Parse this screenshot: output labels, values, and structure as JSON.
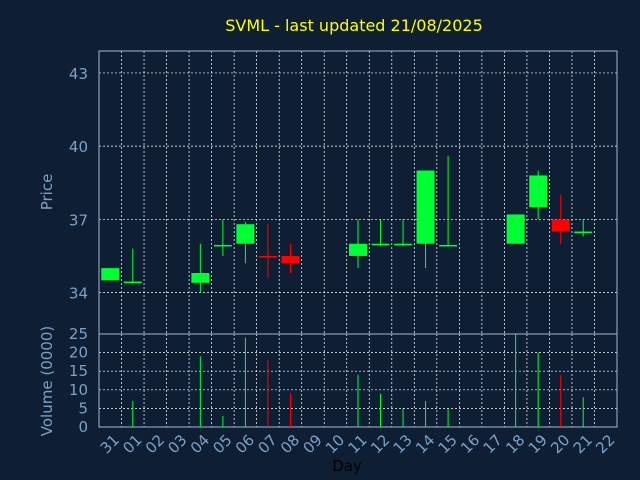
{
  "colors": {
    "background": "#0f1f33",
    "title": "#ffff00",
    "axis_text": "#7aa2c8",
    "frame": "#9fb7d0",
    "grid": "#ffffff",
    "up": "#00ff33",
    "down": "#ff0000"
  },
  "chart_data": {
    "type": "candlestick",
    "title": "SVML - last updated 21/08/2025",
    "price_panel": {
      "ylabel": "Price",
      "yticks": [
        "34",
        "37",
        "40",
        "43"
      ],
      "ytick_values": [
        34,
        37,
        40,
        43
      ],
      "ylim": [
        32.3,
        43.9
      ],
      "grid": true
    },
    "volume_panel": {
      "ylabel": "Volume (0000)",
      "yticks": [
        "0",
        "5",
        "10",
        "15",
        "20",
        "25"
      ],
      "ytick_values": [
        0,
        5,
        10,
        15,
        20,
        25
      ],
      "ylim": [
        0,
        25
      ]
    },
    "xlabel": "Day",
    "x_ticks": [
      "31",
      "01",
      "02",
      "03",
      "04",
      "05",
      "06",
      "07",
      "08",
      "09",
      "10",
      "11",
      "12",
      "13",
      "14",
      "15",
      "16",
      "17",
      "18",
      "19",
      "20",
      "21",
      "22"
    ],
    "candles": [
      {
        "day": "31",
        "open": 34.5,
        "high": 35.0,
        "low": 34.5,
        "close": 35.0,
        "volume": 0
      },
      {
        "day": "01",
        "open": 34.4,
        "high": 35.8,
        "low": 34.4,
        "close": 34.45,
        "volume": 7
      },
      {
        "day": "04",
        "open": 34.4,
        "high": 36.0,
        "low": 34.0,
        "close": 34.8,
        "volume": 19
      },
      {
        "day": "05",
        "open": 35.9,
        "high": 37.0,
        "low": 35.5,
        "close": 35.95,
        "volume": 3
      },
      {
        "day": "06",
        "open": 36.0,
        "high": 36.9,
        "low": 35.2,
        "close": 36.8,
        "volume": 24
      },
      {
        "day": "07",
        "open": 35.5,
        "high": 36.8,
        "low": 34.6,
        "close": 35.45,
        "volume": 18
      },
      {
        "day": "08",
        "open": 35.5,
        "high": 36.0,
        "low": 34.8,
        "close": 35.2,
        "volume": 9
      },
      {
        "day": "11",
        "open": 35.5,
        "high": 37.0,
        "low": 35.0,
        "close": 36.0,
        "volume": 14
      },
      {
        "day": "12",
        "open": 35.95,
        "high": 37.0,
        "low": 35.9,
        "close": 36.0,
        "volume": 9
      },
      {
        "day": "13",
        "open": 35.95,
        "high": 37.0,
        "low": 35.9,
        "close": 36.0,
        "volume": 5
      },
      {
        "day": "14",
        "open": 36.0,
        "high": 39.0,
        "low": 35.0,
        "close": 39.0,
        "volume": 7
      },
      {
        "day": "15",
        "open": 35.9,
        "high": 39.6,
        "low": 35.9,
        "close": 35.95,
        "volume": 5
      },
      {
        "day": "18",
        "open": 36.0,
        "high": 37.2,
        "low": 36.0,
        "close": 37.2,
        "volume": 25
      },
      {
        "day": "19",
        "open": 37.5,
        "high": 39.0,
        "low": 37.0,
        "close": 38.8,
        "volume": 20
      },
      {
        "day": "20",
        "open": 37.0,
        "high": 38.0,
        "low": 36.0,
        "close": 36.5,
        "volume": 14
      },
      {
        "day": "21",
        "open": 36.45,
        "high": 37.0,
        "low": 36.3,
        "close": 36.5,
        "volume": 8
      }
    ]
  }
}
